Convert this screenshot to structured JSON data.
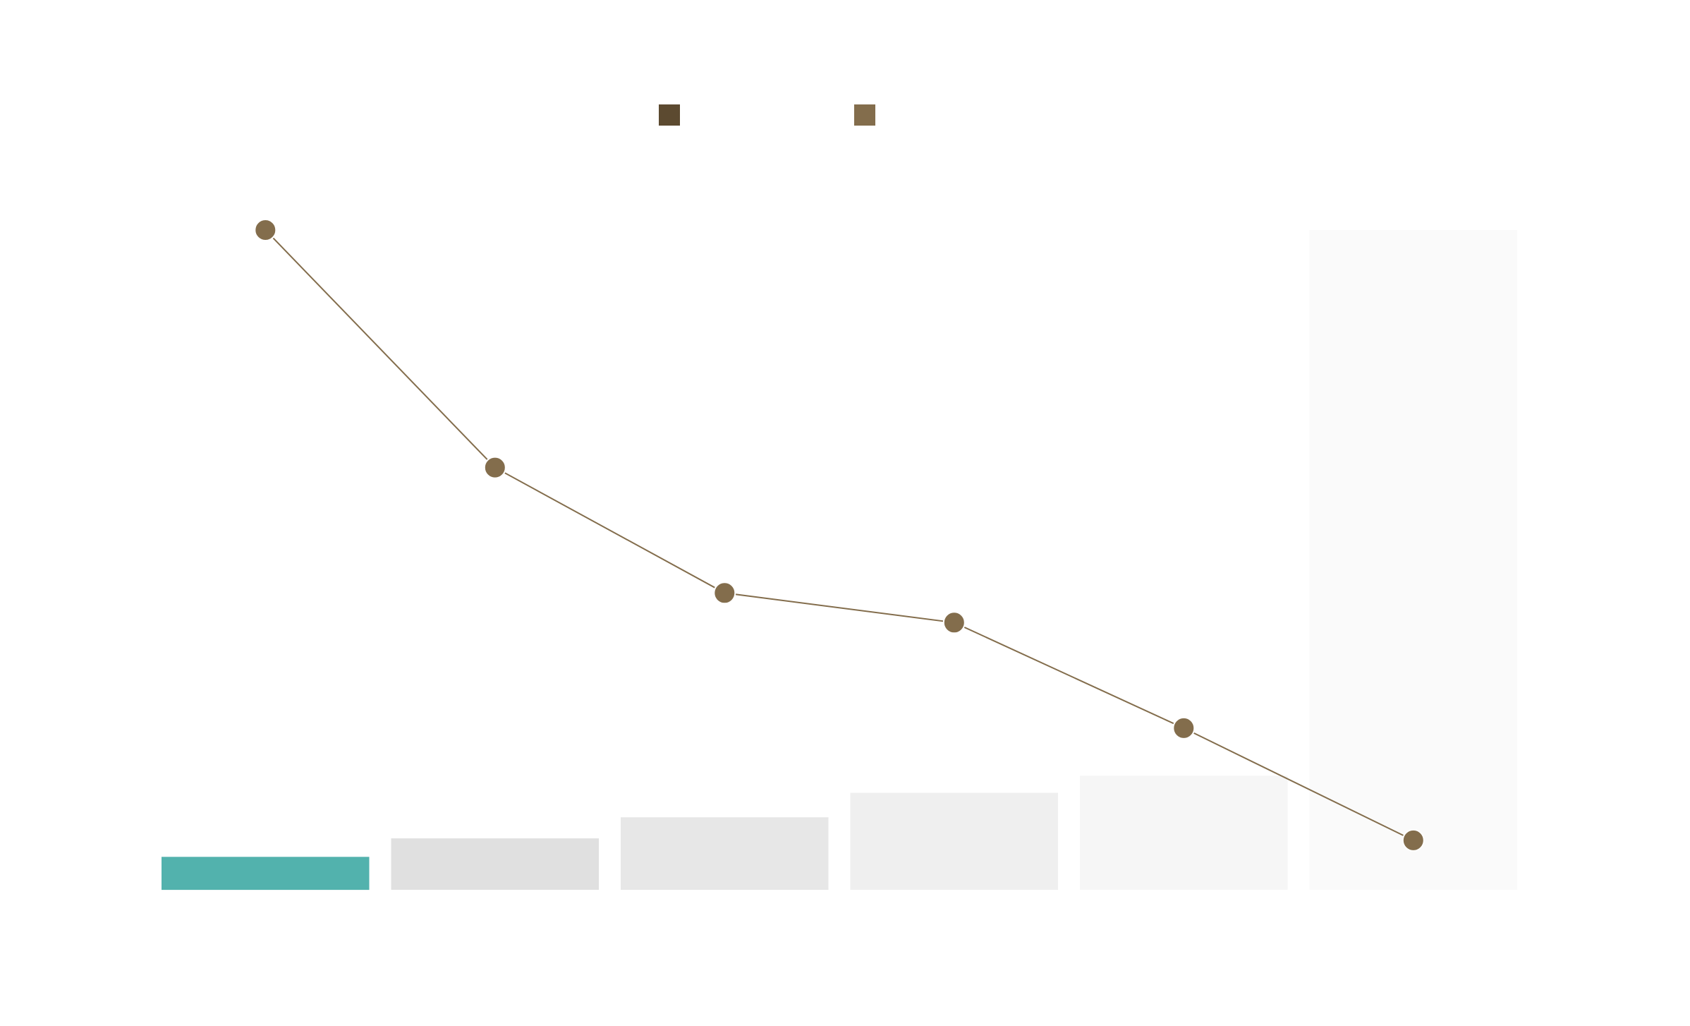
{
  "chart_data": {
    "type": "bar",
    "title": "",
    "xlabel": "",
    "ylabel": "",
    "categories": [
      "",
      "",
      "",
      "",
      "",
      ""
    ],
    "ylim": [
      0,
      100
    ],
    "y2lim": [
      0,
      100
    ],
    "legend": {
      "placement": "top-center",
      "entries": [
        {
          "name": "",
          "color": "#5c4a30"
        },
        {
          "name": "",
          "color": "#836d4c"
        }
      ]
    },
    "grid": false,
    "series": [
      {
        "type": "bar",
        "name": "",
        "values": [
          5,
          7.8,
          11,
          14.7,
          17.3,
          100
        ],
        "colors": [
          "#52b2ad",
          "#e0e0e0",
          "#e7e7e7",
          "#efefef",
          "#f6f6f6",
          "#fafafa"
        ]
      },
      {
        "type": "line",
        "name": "",
        "axis": "secondary",
        "values": [
          100,
          64,
          45,
          40.5,
          24.5,
          7.5
        ],
        "color": "#836d4c"
      }
    ]
  }
}
